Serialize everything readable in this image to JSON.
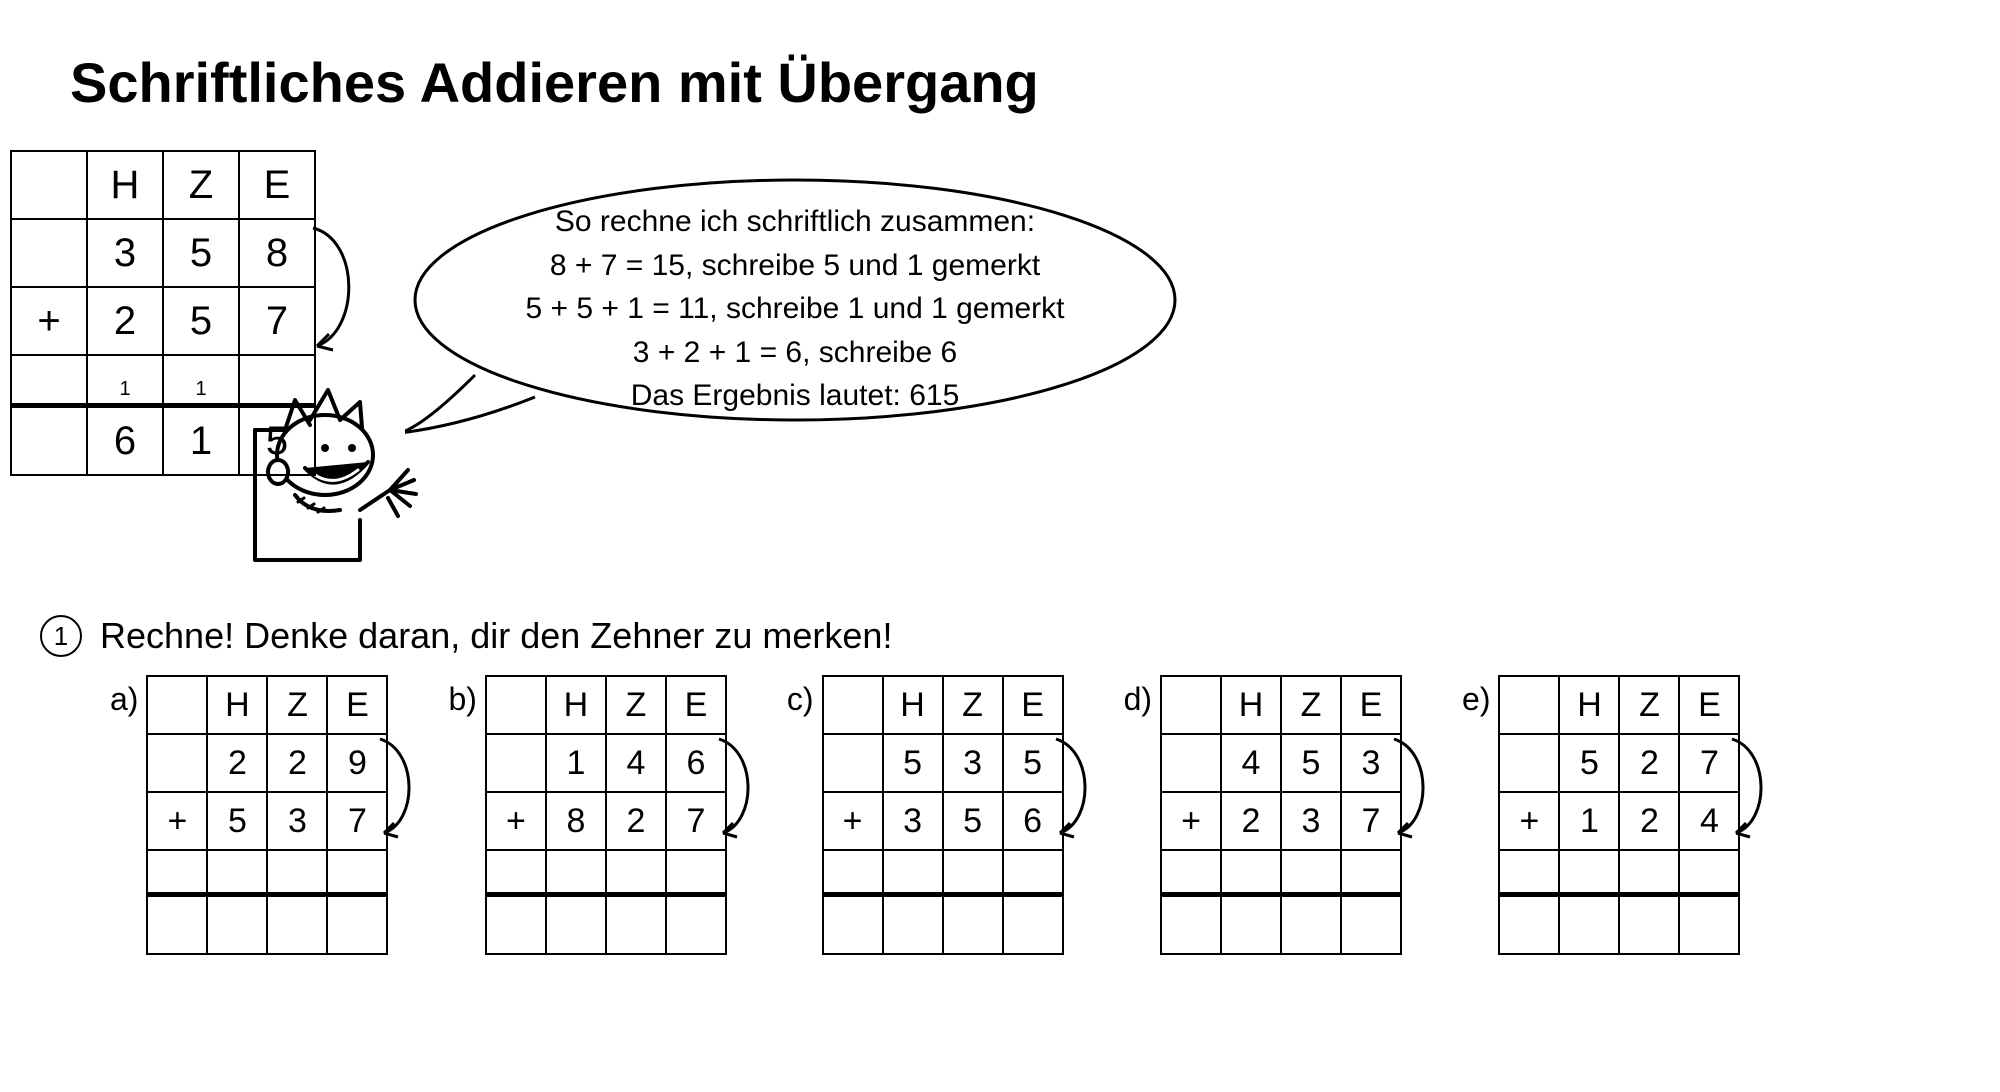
{
  "title": "Schriftliches Addieren mit Übergang",
  "bubble": {
    "lines": [
      "So rechne ich schriftlich zusammen:",
      "8 + 7 = 15, schreibe 5 und 1 gemerkt",
      "5 + 5 + 1 = 11, schreibe 1 und 1 gemerkt",
      "3 + 2 + 1 = 6, schreibe 6",
      "Das Ergebnis lautet: 615"
    ],
    "fontsize": 30,
    "text_color": "#000000",
    "outline_color": "#000000",
    "fill": "#ffffff"
  },
  "grid_style": {
    "border_color": "#000000",
    "border_width": 2,
    "font_family": "Arial",
    "cell_bg": "#ffffff",
    "big_cell_w": 72,
    "big_cell_h": 64,
    "big_fontsize": 40,
    "small_cell_w": 56,
    "small_cell_h": 54,
    "small_fontsize": 34,
    "carry_fontsize": 20
  },
  "headers": {
    "H": "H",
    "Z": "Z",
    "E": "E"
  },
  "plus": "+",
  "example": {
    "type": "column-addition",
    "columns": [
      "H",
      "Z",
      "E"
    ],
    "row1": [
      "3",
      "5",
      "8"
    ],
    "row2": [
      "2",
      "5",
      "7"
    ],
    "carry": [
      "1",
      "1",
      ""
    ],
    "result": [
      "6",
      "1",
      "5"
    ],
    "arrow": true
  },
  "exercise": {
    "number": "1",
    "instruction": "Rechne! Denke daran, dir den Zehner zu merken!",
    "items": [
      {
        "label": "a)",
        "row1": [
          "2",
          "2",
          "9"
        ],
        "row2": [
          "5",
          "3",
          "7"
        ]
      },
      {
        "label": "b)",
        "row1": [
          "1",
          "4",
          "6"
        ],
        "row2": [
          "8",
          "2",
          "7"
        ]
      },
      {
        "label": "c)",
        "row1": [
          "5",
          "3",
          "5"
        ],
        "row2": [
          "3",
          "5",
          "6"
        ]
      },
      {
        "label": "d)",
        "row1": [
          "4",
          "5",
          "3"
        ],
        "row2": [
          "2",
          "3",
          "7"
        ]
      },
      {
        "label": "e)",
        "row1": [
          "5",
          "2",
          "7"
        ],
        "row2": [
          "1",
          "2",
          "4"
        ]
      }
    ]
  },
  "colors": {
    "background": "#ffffff",
    "text": "#000000",
    "line": "#000000"
  }
}
